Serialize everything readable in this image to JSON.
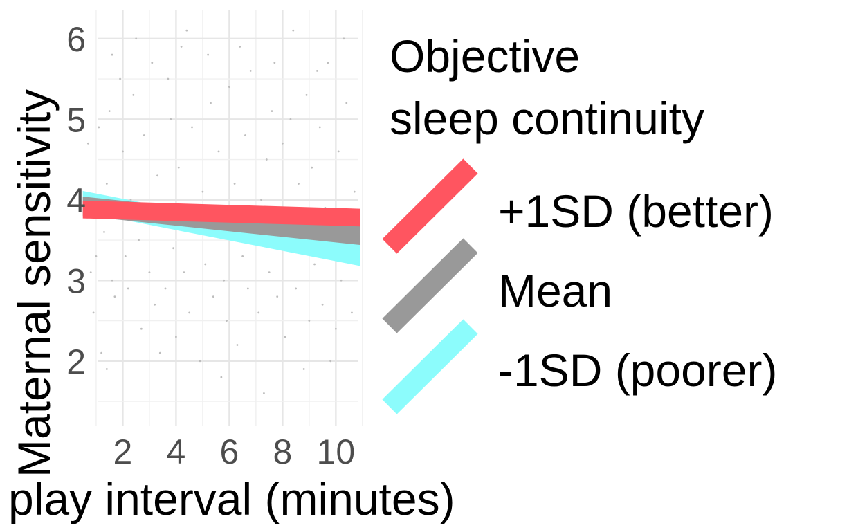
{
  "chart_data": {
    "type": "line",
    "xlabel": "play interval (minutes)",
    "ylabel": "Maternal sensitivity",
    "xlim": [
      0.3,
      10.9
    ],
    "ylim": [
      1.2,
      6.35
    ],
    "x_ticks": [
      2,
      4,
      6,
      8,
      10
    ],
    "x_tick_labels": [
      "2",
      "4",
      "6",
      "8",
      "10"
    ],
    "y_ticks": [
      2,
      3,
      4,
      5,
      6
    ],
    "y_tick_labels": [
      "2",
      "3",
      "4",
      "5",
      "6"
    ],
    "grid": true,
    "legend": {
      "title_lines": [
        "Objective",
        "sleep continuity"
      ],
      "position": "right"
    },
    "series": [
      {
        "name": "+1SD (better)",
        "color": "#ff5560",
        "x": [
          0.5,
          10.9
        ],
        "y": [
          3.88,
          3.78
        ],
        "band": 0.11
      },
      {
        "name": "Mean",
        "color": "#999999",
        "x": [
          0.5,
          10.9
        ],
        "y": [
          3.92,
          3.56
        ],
        "band": 0.12
      },
      {
        "name": "-1SD (poorer)",
        "color": "#8cfcfc",
        "x": [
          0.5,
          10.9
        ],
        "y": [
          3.98,
          3.31
        ],
        "band": 0.13
      }
    ],
    "points": [
      [
        0.7,
        4.7
      ],
      [
        0.8,
        3.1
      ],
      [
        0.9,
        2.6
      ],
      [
        1.0,
        3.3
      ],
      [
        1.1,
        4.9
      ],
      [
        1.2,
        2.1
      ],
      [
        1.3,
        3.6
      ],
      [
        1.4,
        4.2
      ],
      [
        1.5,
        5.1
      ],
      [
        1.6,
        3.0
      ],
      [
        1.7,
        2.8
      ],
      [
        1.8,
        3.9
      ],
      [
        1.9,
        5.5
      ],
      [
        2.0,
        4.6
      ],
      [
        2.1,
        3.3
      ],
      [
        2.2,
        2.9
      ],
      [
        2.3,
        4.0
      ],
      [
        2.4,
        5.3
      ],
      [
        2.6,
        3.5
      ],
      [
        2.7,
        2.4
      ],
      [
        2.8,
        4.8
      ],
      [
        3.0,
        3.1
      ],
      [
        3.1,
        5.7
      ],
      [
        3.2,
        2.7
      ],
      [
        3.3,
        4.3
      ],
      [
        3.5,
        3.8
      ],
      [
        3.6,
        2.9
      ],
      [
        3.8,
        5.0
      ],
      [
        3.9,
        3.4
      ],
      [
        4.0,
        2.3
      ],
      [
        4.1,
        4.4
      ],
      [
        4.2,
        5.9
      ],
      [
        4.3,
        3.1
      ],
      [
        4.5,
        2.6
      ],
      [
        4.6,
        4.9
      ],
      [
        4.7,
        3.6
      ],
      [
        4.9,
        2.0
      ],
      [
        5.0,
        4.1
      ],
      [
        5.1,
        3.2
      ],
      [
        5.3,
        5.2
      ],
      [
        5.4,
        2.8
      ],
      [
        5.5,
        3.9
      ],
      [
        5.6,
        4.6
      ],
      [
        5.8,
        3.0
      ],
      [
        5.9,
        2.5
      ],
      [
        6.0,
        5.4
      ],
      [
        6.1,
        3.7
      ],
      [
        6.2,
        4.2
      ],
      [
        6.3,
        2.2
      ],
      [
        6.5,
        3.3
      ],
      [
        6.6,
        4.8
      ],
      [
        6.7,
        2.9
      ],
      [
        6.8,
        5.6
      ],
      [
        7.0,
        3.5
      ],
      [
        7.1,
        2.6
      ],
      [
        7.2,
        4.0
      ],
      [
        7.4,
        4.5
      ],
      [
        7.5,
        3.1
      ],
      [
        7.6,
        5.1
      ],
      [
        7.8,
        2.8
      ],
      [
        7.9,
        3.8
      ],
      [
        8.0,
        4.7
      ],
      [
        8.1,
        2.3
      ],
      [
        8.2,
        3.4
      ],
      [
        8.3,
        5.0
      ],
      [
        8.5,
        2.9
      ],
      [
        8.6,
        4.2
      ],
      [
        8.7,
        3.6
      ],
      [
        8.9,
        5.3
      ],
      [
        9.0,
        2.5
      ],
      [
        9.1,
        4.4
      ],
      [
        9.2,
        3.2
      ],
      [
        9.4,
        4.9
      ],
      [
        9.5,
        2.7
      ],
      [
        9.6,
        3.9
      ],
      [
        9.7,
        5.7
      ],
      [
        9.9,
        3.3
      ],
      [
        10.0,
        2.4
      ],
      [
        10.1,
        4.6
      ],
      [
        10.2,
        3.0
      ],
      [
        10.4,
        5.2
      ],
      [
        10.5,
        3.7
      ],
      [
        10.6,
        2.6
      ],
      [
        10.7,
        4.1
      ],
      [
        1.4,
        1.9
      ],
      [
        3.4,
        2.1
      ],
      [
        5.7,
        1.8
      ],
      [
        7.3,
        1.6
      ],
      [
        8.8,
        1.9
      ],
      [
        9.8,
        2.0
      ],
      [
        2.5,
        6.0
      ],
      [
        4.4,
        6.1
      ],
      [
        6.4,
        5.9
      ],
      [
        8.4,
        6.1
      ],
      [
        10.3,
        6.0
      ],
      [
        1.6,
        5.8
      ],
      [
        3.7,
        5.5
      ],
      [
        5.2,
        5.8
      ],
      [
        7.7,
        5.7
      ],
      [
        9.3,
        5.6
      ]
    ]
  }
}
